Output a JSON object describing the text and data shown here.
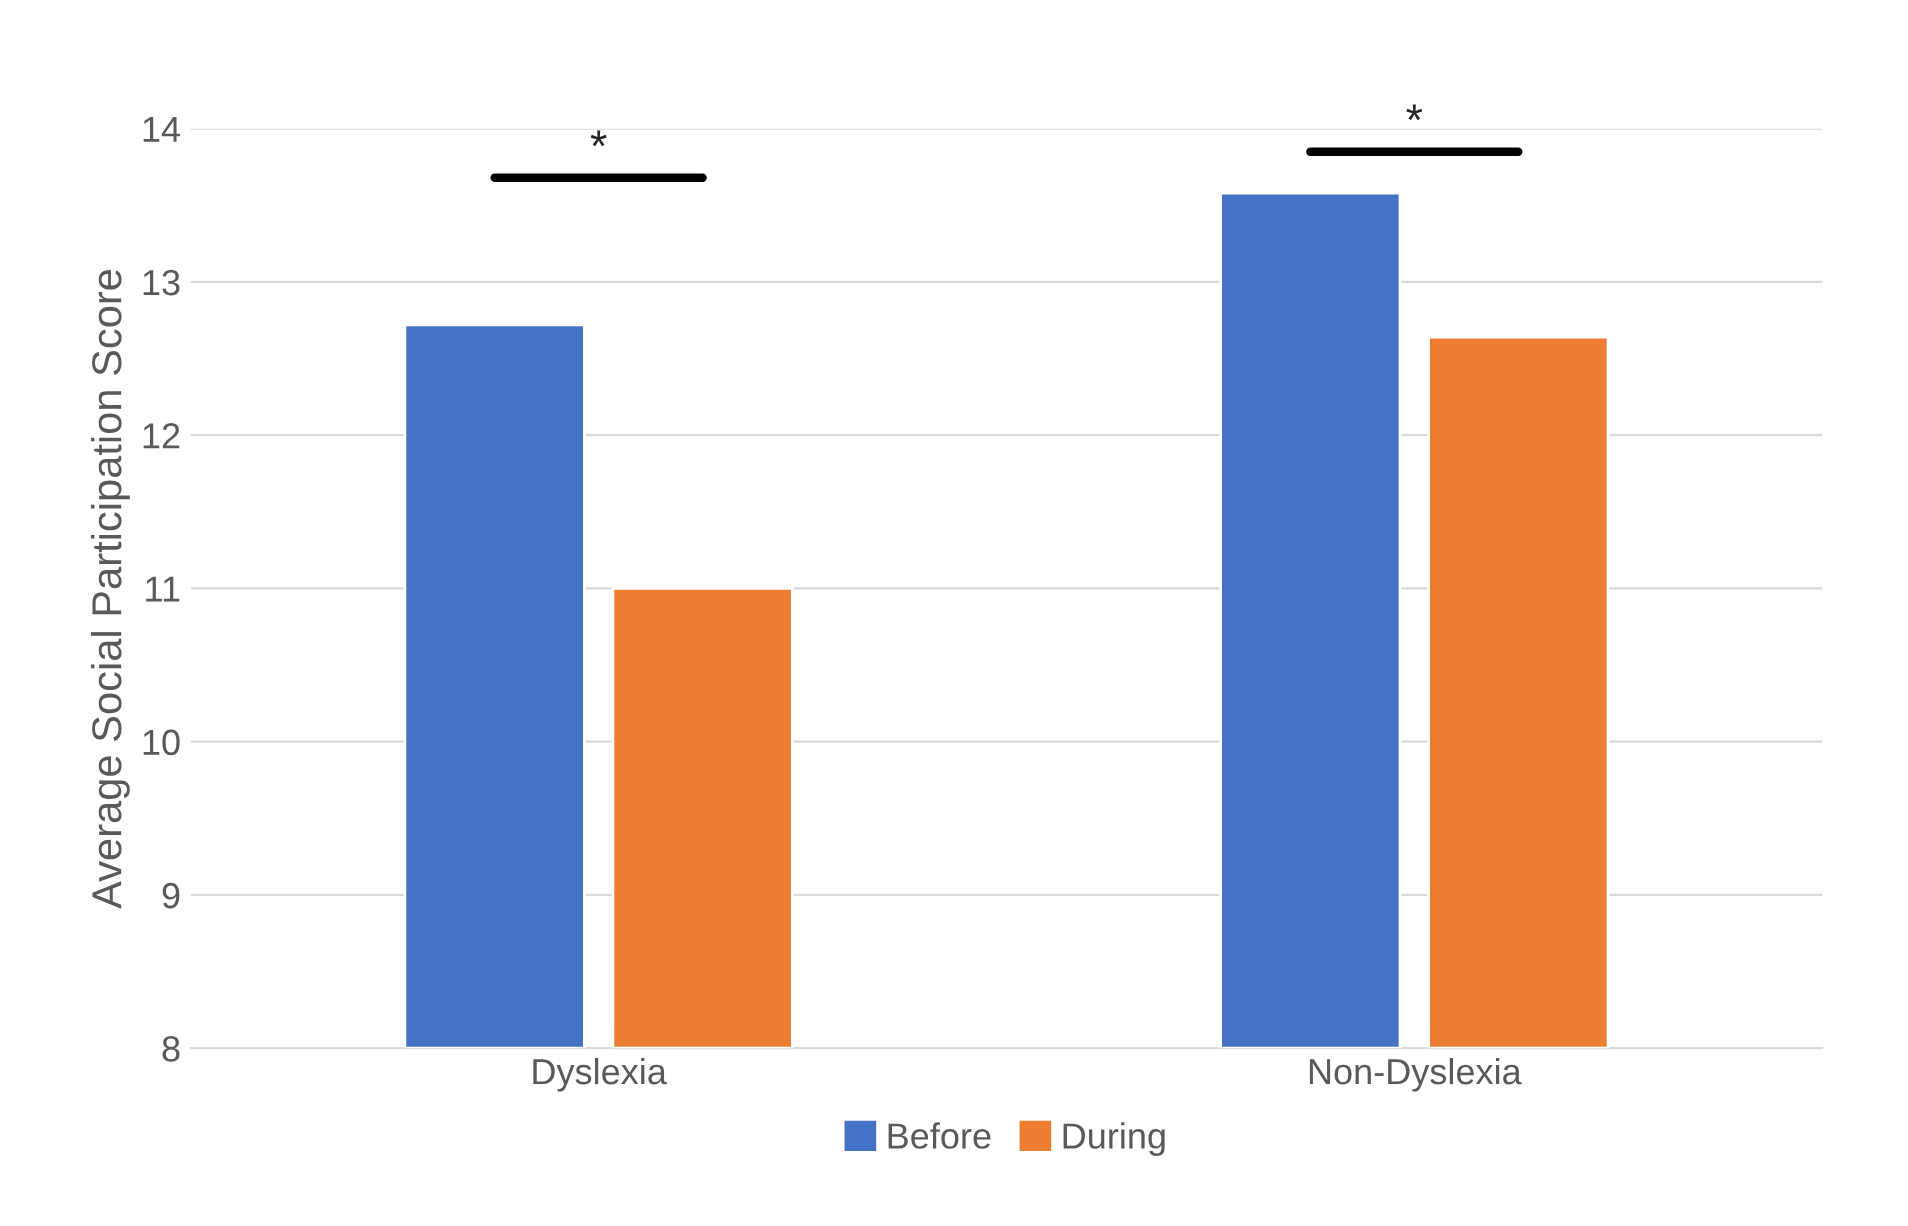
{
  "chart_data": {
    "type": "bar",
    "ylabel": "Average Social Participation Score",
    "categories": [
      "Dyslexia",
      "Non-Dyslexia"
    ],
    "series": [
      {
        "name": "Before",
        "color": "#4472c4",
        "values": [
          12.72,
          13.58
        ]
      },
      {
        "name": "During",
        "color": "#ed7d31",
        "values": [
          11.0,
          12.64
        ]
      }
    ],
    "ylim": [
      8,
      14
    ],
    "yticks": [
      8,
      9,
      10,
      11,
      12,
      13,
      14
    ],
    "grid": "y",
    "legend": "bottom",
    "annotations": [
      "*",
      "*"
    ]
  }
}
